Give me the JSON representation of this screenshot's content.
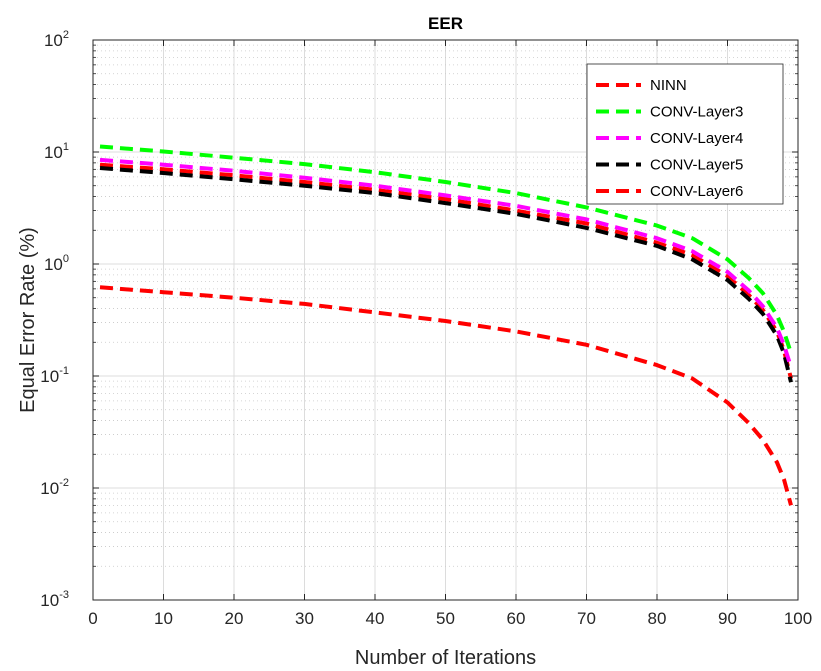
{
  "chart_data": {
    "type": "line",
    "title": "EER",
    "xlabel": "Number of Iterations",
    "ylabel": "Equal Error Rate (%)",
    "xlim": [
      0,
      100
    ],
    "ylim": [
      0.001,
      100
    ],
    "yscale": "log",
    "grid": true,
    "legend_position": "top-right",
    "x_ticks": [
      "0",
      "10",
      "20",
      "30",
      "40",
      "50",
      "60",
      "70",
      "80",
      "90",
      "100"
    ],
    "y_ticks": [
      {
        "base": "10",
        "exp": "-3"
      },
      {
        "base": "10",
        "exp": "-2"
      },
      {
        "base": "10",
        "exp": "-1"
      },
      {
        "base": "10",
        "exp": "0"
      },
      {
        "base": "10",
        "exp": "1"
      },
      {
        "base": "10",
        "exp": "2"
      }
    ],
    "x": [
      1,
      10,
      20,
      30,
      40,
      50,
      60,
      70,
      80,
      85,
      90,
      93,
      95,
      97,
      98,
      99
    ],
    "series": [
      {
        "name": "NINN",
        "color": "#ff0000",
        "values": [
          0.62,
          0.56,
          0.5,
          0.44,
          0.37,
          0.31,
          0.25,
          0.19,
          0.125,
          0.095,
          0.058,
          0.038,
          0.027,
          0.017,
          0.012,
          0.007
        ]
      },
      {
        "name": "CONV-Layer3",
        "color": "#00ff00",
        "values": [
          11.2,
          10.1,
          8.9,
          7.8,
          6.6,
          5.4,
          4.3,
          3.2,
          2.2,
          1.7,
          1.1,
          0.75,
          0.55,
          0.35,
          0.25,
          0.16
        ]
      },
      {
        "name": "CONV-Layer4",
        "color": "#ff00ff",
        "values": [
          8.5,
          7.7,
          6.8,
          5.9,
          5.0,
          4.1,
          3.3,
          2.5,
          1.7,
          1.3,
          0.85,
          0.58,
          0.42,
          0.27,
          0.19,
          0.12
        ]
      },
      {
        "name": "CONV-Layer5",
        "color": "#000000",
        "values": [
          7.2,
          6.5,
          5.7,
          5.0,
          4.3,
          3.5,
          2.8,
          2.1,
          1.45,
          1.1,
          0.72,
          0.49,
          0.36,
          0.23,
          0.16,
          0.088
        ]
      },
      {
        "name": "CONV-Layer6",
        "color": "#ff0000",
        "values": [
          7.7,
          7.0,
          6.2,
          5.4,
          4.6,
          3.8,
          3.0,
          2.3,
          1.55,
          1.2,
          0.78,
          0.53,
          0.39,
          0.25,
          0.17,
          0.095
        ]
      }
    ]
  }
}
